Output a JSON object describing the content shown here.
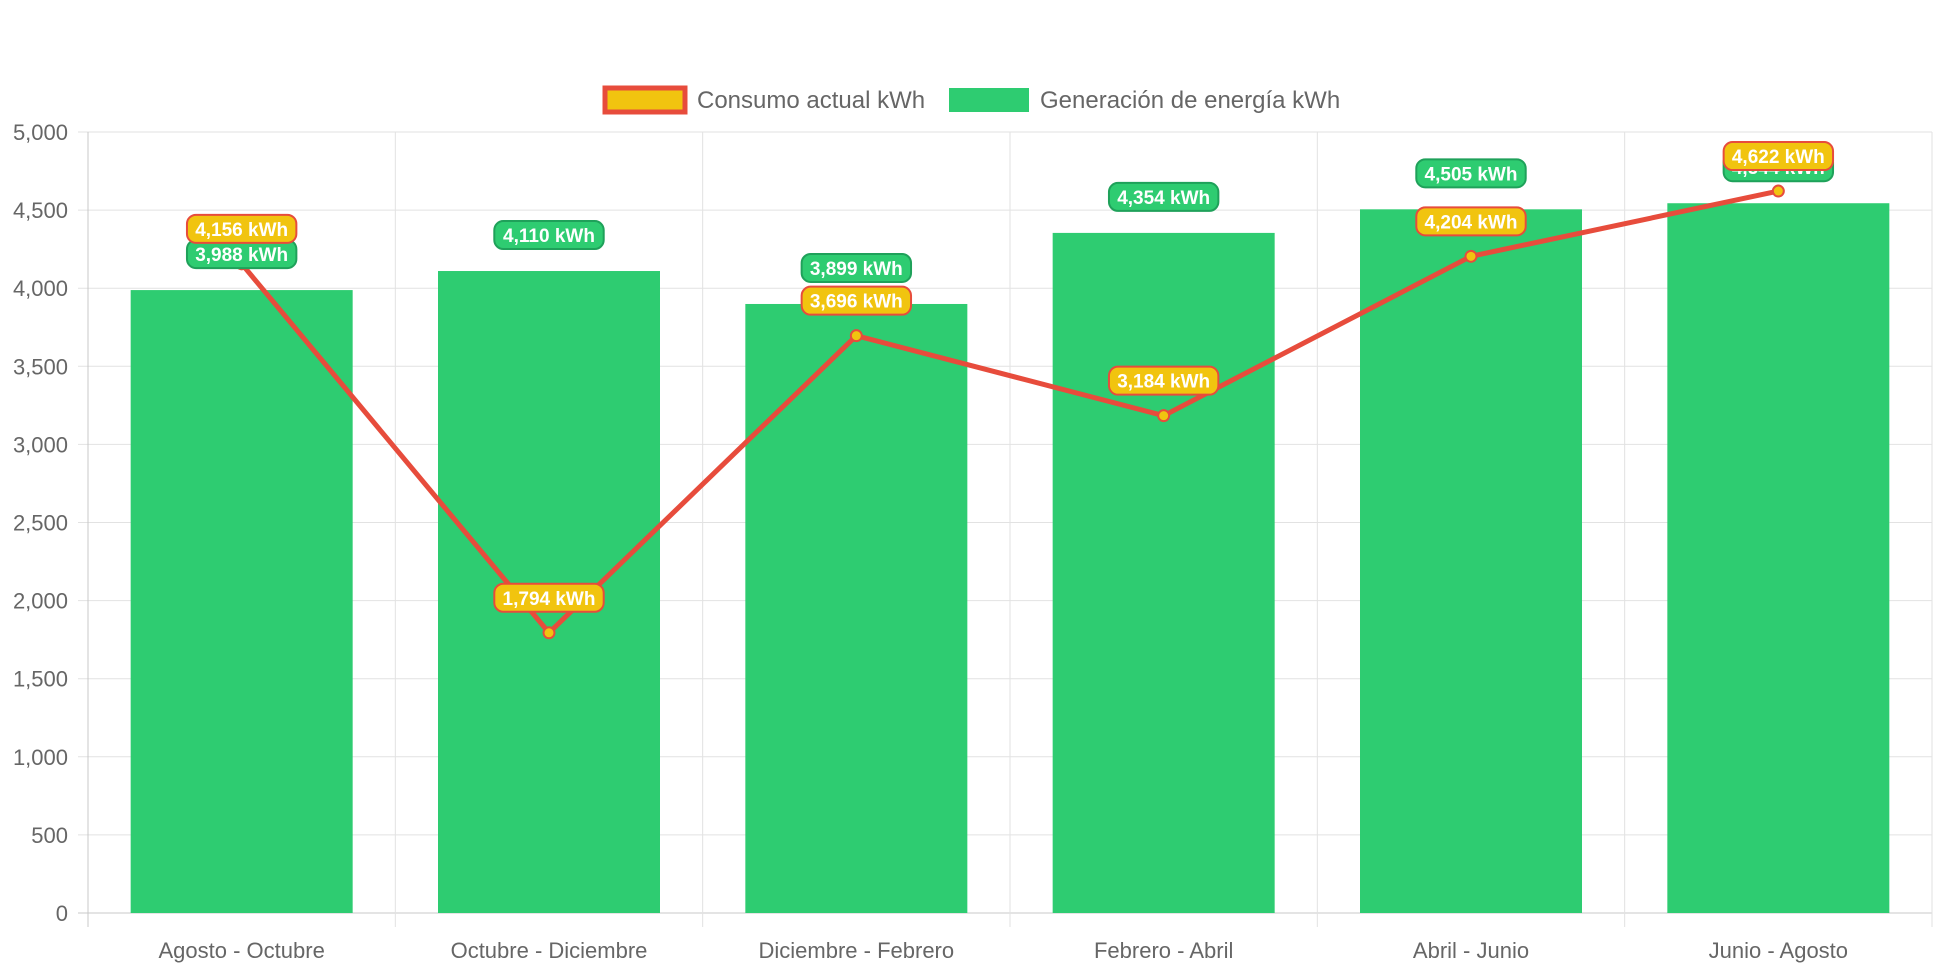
{
  "chart_data": {
    "type": "bar",
    "categories": [
      "Agosto - Octubre",
      "Octubre - Diciembre",
      "Diciembre - Febrero",
      "Febrero - Abril",
      "Abril - Junio",
      "Junio - Agosto"
    ],
    "series": [
      {
        "name": "Consumo actual kWh",
        "type": "line",
        "values": [
          4156,
          1794,
          3696,
          3184,
          4204,
          4622
        ],
        "labels": [
          "4,156 kWh",
          "1,794 kWh",
          "3,696 kWh",
          "3,184 kWh",
          "4,204 kWh",
          "4,622 kWh"
        ],
        "color": "#e74c3c",
        "fill": "#f1c40f"
      },
      {
        "name": "Generación de energía kWh",
        "type": "bar",
        "values": [
          3988,
          4110,
          3899,
          4354,
          4505,
          4544
        ],
        "labels": [
          "3,988 kWh",
          "4,110 kWh",
          "3,899 kWh",
          "4,354 kWh",
          "4,505 kWh",
          "4,544 kWh"
        ],
        "color": "#2ecc71"
      }
    ],
    "yticks": [
      "0",
      "500",
      "1,000",
      "1,500",
      "2,000",
      "2,500",
      "3,000",
      "3,500",
      "4,000",
      "4,500",
      "5,000"
    ],
    "ylim": [
      0,
      5000
    ],
    "grid": true,
    "legend_position": "top-center"
  }
}
